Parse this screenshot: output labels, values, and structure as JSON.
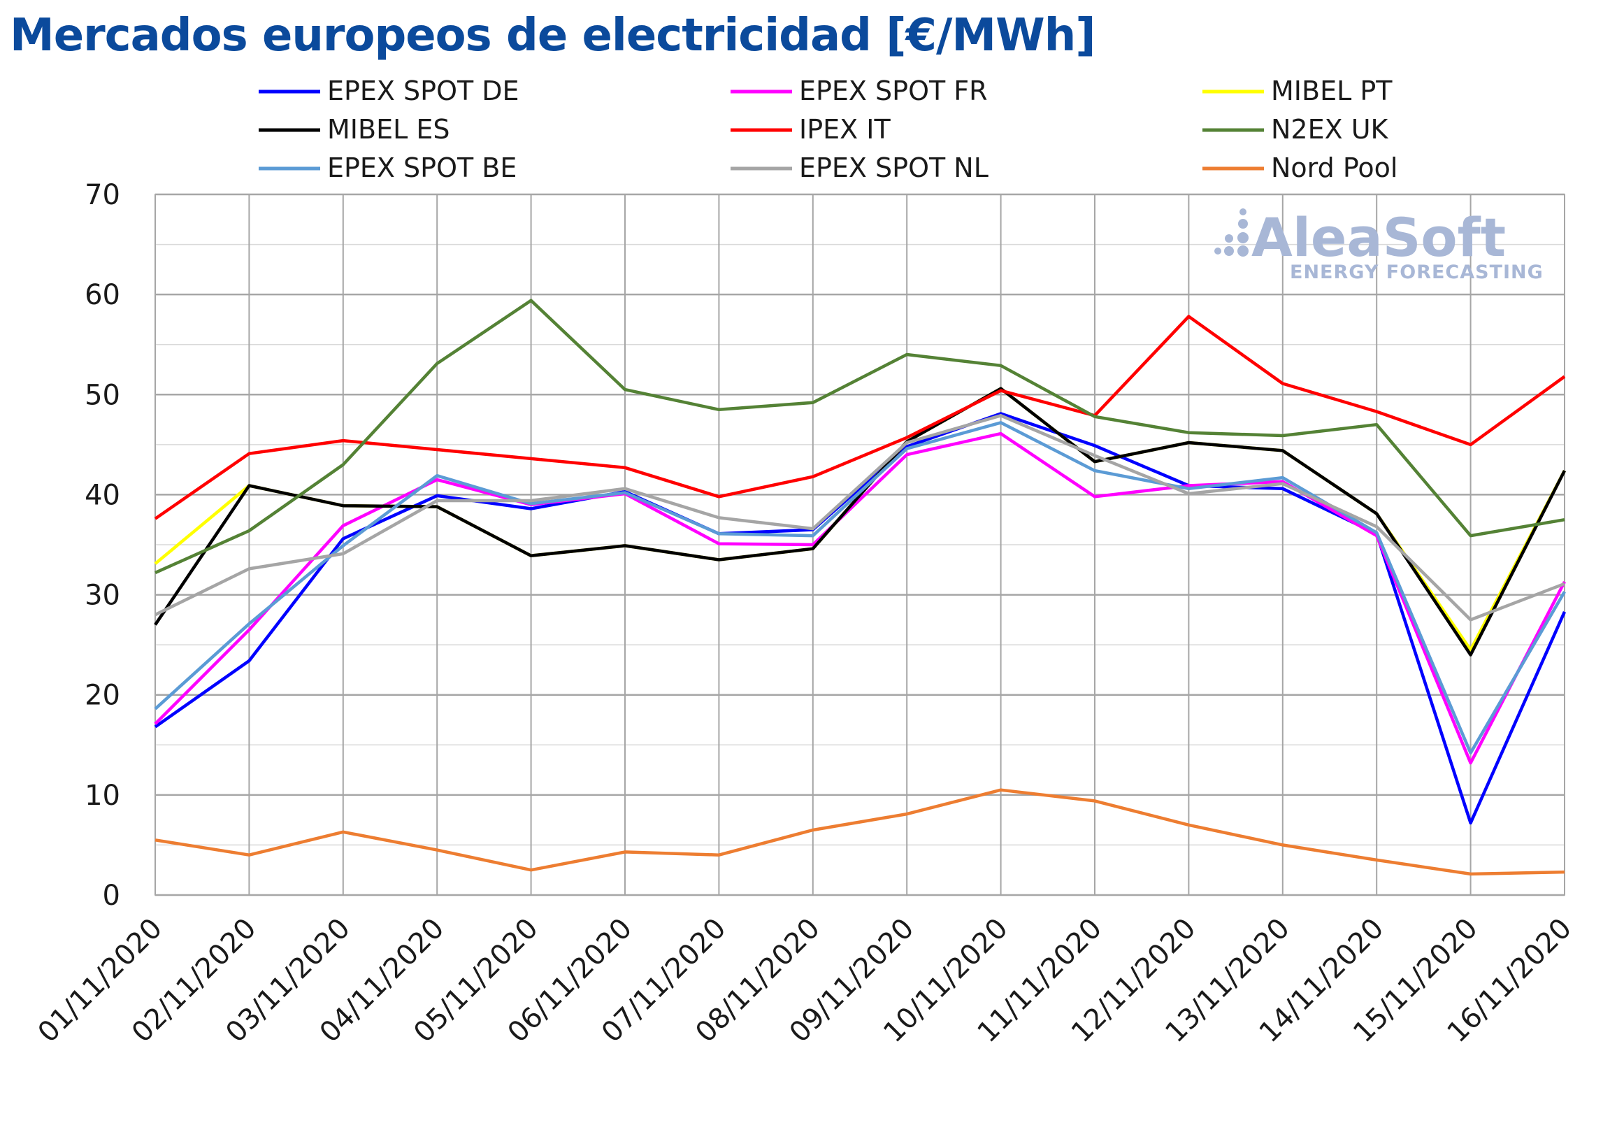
{
  "title": "Mercados europeos de electricidad [€/MWh]",
  "watermark": {
    "name": "AleaSoft",
    "tagline": "ENERGY FORECASTING",
    "color": "#a8b7d6"
  },
  "chart_data": {
    "type": "line",
    "title": "Mercados europeos de electricidad [€/MWh]",
    "xlabel": "",
    "ylabel": "",
    "ylim": [
      0,
      70
    ],
    "ytick_step": 10,
    "grid": true,
    "legend_position": "top",
    "categories": [
      "01/11/2020",
      "02/11/2020",
      "03/11/2020",
      "04/11/2020",
      "05/11/2020",
      "06/11/2020",
      "07/11/2020",
      "08/11/2020",
      "09/11/2020",
      "10/11/2020",
      "11/11/2020",
      "12/11/2020",
      "13/11/2020",
      "14/11/2020",
      "15/11/2020",
      "16/11/2020"
    ],
    "series": [
      {
        "name": "EPEX SPOT DE",
        "color": "#0000ff",
        "values": [
          16.8,
          23.4,
          35.6,
          39.9,
          38.6,
          40.3,
          36.1,
          36.5,
          44.8,
          48.1,
          44.9,
          40.9,
          40.6,
          36.1,
          7.2,
          28.3
        ]
      },
      {
        "name": "EPEX SPOT FR",
        "color": "#ff00ff",
        "values": [
          17.1,
          26.5,
          36.9,
          41.5,
          39.0,
          40.1,
          35.1,
          35.0,
          44.0,
          46.1,
          39.8,
          40.9,
          41.3,
          35.9,
          13.2,
          31.3
        ]
      },
      {
        "name": "MIBEL PT",
        "color": "#ffff00",
        "values": [
          33.1,
          40.9,
          38.9,
          38.8,
          33.9,
          34.9,
          33.5,
          34.6,
          45.3,
          50.6,
          43.3,
          45.2,
          44.4,
          38.1,
          24.5,
          42.4
        ]
      },
      {
        "name": "MIBEL ES",
        "color": "#000000",
        "values": [
          27.0,
          40.9,
          38.9,
          38.8,
          33.9,
          34.9,
          33.5,
          34.6,
          45.3,
          50.6,
          43.3,
          45.2,
          44.4,
          38.1,
          24.0,
          42.4
        ]
      },
      {
        "name": "IPEX IT",
        "color": "#ff0000",
        "values": [
          37.6,
          44.1,
          45.4,
          44.5,
          43.6,
          42.7,
          39.8,
          41.8,
          45.7,
          50.4,
          47.9,
          57.8,
          51.1,
          48.3,
          45.0,
          51.8
        ]
      },
      {
        "name": "N2EX UK",
        "color": "#548235",
        "values": [
          32.2,
          36.4,
          43.0,
          53.1,
          59.4,
          50.5,
          48.5,
          49.2,
          54.0,
          52.9,
          47.8,
          46.2,
          45.9,
          47.0,
          35.9,
          37.5
        ]
      },
      {
        "name": "EPEX SPOT BE",
        "color": "#5b9bd5",
        "values": [
          18.6,
          27.1,
          34.9,
          41.9,
          39.1,
          40.2,
          36.1,
          35.9,
          44.6,
          47.2,
          42.4,
          40.6,
          41.7,
          36.2,
          14.2,
          30.3
        ]
      },
      {
        "name": "EPEX SPOT NL",
        "color": "#a5a5a5",
        "values": [
          28.0,
          32.6,
          34.1,
          39.4,
          39.4,
          40.6,
          37.7,
          36.6,
          45.2,
          47.9,
          43.9,
          40.1,
          41.1,
          36.8,
          27.5,
          31.1
        ]
      },
      {
        "name": "Nord Pool",
        "color": "#ed7d31",
        "values": [
          5.5,
          4.0,
          6.3,
          4.5,
          2.5,
          4.3,
          4.0,
          6.5,
          8.1,
          10.5,
          9.4,
          7.0,
          5.0,
          3.5,
          2.1,
          2.3
        ]
      }
    ]
  }
}
